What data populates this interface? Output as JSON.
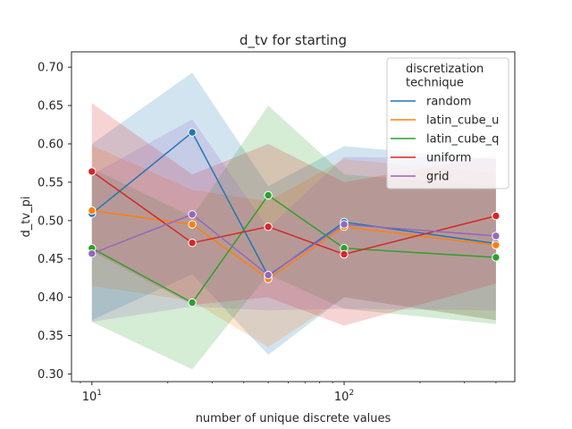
{
  "chart_data": {
    "type": "line",
    "title": "d_tv for starting",
    "xlabel": "number of unique discrete values",
    "ylabel": "d_tv_pi",
    "xscale": "log",
    "xlim": [
      8.3,
      475
    ],
    "ylim": [
      0.29,
      0.72
    ],
    "x_tick_labels": [
      {
        "base": "10",
        "exp": "1"
      },
      {
        "base": "10",
        "exp": "2"
      }
    ],
    "yticks": [
      0.3,
      0.35,
      0.4,
      0.45,
      0.5,
      0.55,
      0.6,
      0.65,
      0.7
    ],
    "ytick_labels": [
      "0.30",
      "0.35",
      "0.40",
      "0.45",
      "0.50",
      "0.55",
      "0.60",
      "0.65",
      "0.70"
    ],
    "grid": false,
    "legend": {
      "title": "discretization technique",
      "title_lines": [
        "discretization",
        "technique"
      ],
      "position": "top-right"
    },
    "x": [
      10,
      25,
      50,
      100,
      400
    ],
    "series": [
      {
        "name": "random",
        "color": "#1f77b4",
        "values": [
          0.509,
          0.615,
          0.428,
          0.498,
          0.47
        ],
        "ci_low": [
          0.37,
          0.43,
          0.325,
          0.4,
          0.37
        ],
        "ci_high": [
          0.6,
          0.693,
          0.545,
          0.597,
          0.58
        ]
      },
      {
        "name": "latin_cube_u",
        "color": "#ff7f0e",
        "values": [
          0.513,
          0.495,
          0.424,
          0.492,
          0.468
        ],
        "ci_low": [
          0.415,
          0.395,
          0.335,
          0.4,
          0.37
        ],
        "ci_high": [
          0.598,
          0.54,
          0.525,
          0.58,
          0.562
        ]
      },
      {
        "name": "latin_cube_q",
        "color": "#2ca02c",
        "values": [
          0.464,
          0.393,
          0.533,
          0.464,
          0.452
        ],
        "ci_low": [
          0.368,
          0.306,
          0.43,
          0.385,
          0.365
        ],
        "ci_high": [
          0.568,
          0.505,
          0.65,
          0.56,
          0.545
        ]
      },
      {
        "name": "uniform",
        "color": "#d62728",
        "values": [
          0.564,
          0.471,
          0.492,
          0.456,
          0.506
        ],
        "ci_low": [
          0.46,
          0.39,
          0.4,
          0.363,
          0.418
        ],
        "ci_high": [
          0.653,
          0.56,
          0.6,
          0.55,
          0.585
        ]
      },
      {
        "name": "grid",
        "color": "#9467bd",
        "values": [
          0.457,
          0.508,
          0.429,
          0.495,
          0.48
        ],
        "ci_low": [
          0.368,
          0.388,
          0.383,
          0.385,
          0.383
        ],
        "ci_high": [
          0.56,
          0.632,
          0.49,
          0.583,
          0.58
        ]
      }
    ]
  }
}
